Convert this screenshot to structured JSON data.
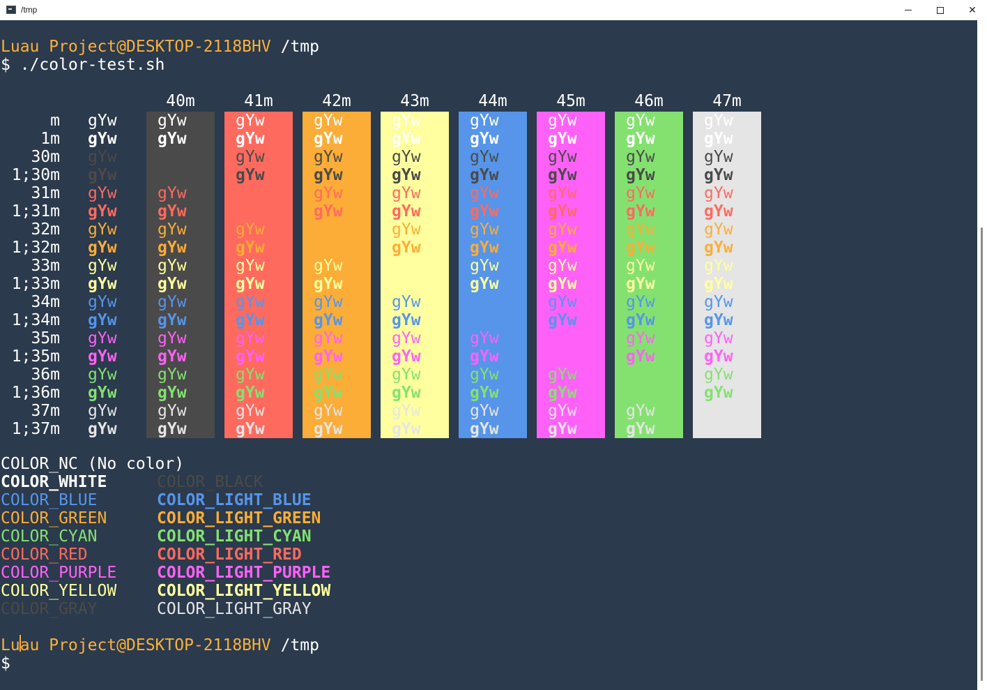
{
  "window": {
    "title": "/tmp",
    "minimize_icon": "minimize-icon",
    "maximize_icon": "maximize-icon",
    "close_icon": "close-icon",
    "close_glyph": "✕"
  },
  "prompt": {
    "user": "Luau Project@DESKTOP-2118BHV",
    "path": "/tmp",
    "command": "$ ./color-test.sh",
    "cursor_line": "$ "
  },
  "colors": {
    "terminal_bg": "#2b3a4c",
    "black": "#4a4a4a",
    "red": "#ff6a5f",
    "orange": "#fbad37",
    "yellow": "#ffff9f",
    "blue": "#5695ea",
    "magenta": "#ff61f8",
    "green": "#84e170",
    "gray": "#e5e5e5",
    "prompt": "#fbb03b"
  },
  "grid": {
    "sample_text": "gYw",
    "headers": [
      "40m",
      "41m",
      "42m",
      "43m",
      "44m",
      "45m",
      "46m",
      "47m"
    ],
    "row_labels": [
      "m",
      "1m",
      "30m",
      "1;30m",
      "31m",
      "1;31m",
      "32m",
      "1;32m",
      "33m",
      "1;33m",
      "34m",
      "1;34m",
      "35m",
      "1;35m",
      "36m",
      "1;36m",
      "37m",
      "1;37m"
    ]
  },
  "color_list": {
    "nc": "COLOR_NC (No color)",
    "left": [
      "COLOR_WHITE",
      "COLOR_BLUE",
      "COLOR_GREEN",
      "COLOR_CYAN",
      "COLOR_RED",
      "COLOR_PURPLE",
      "COLOR_YELLOW",
      "COLOR_GRAY"
    ],
    "right": [
      "COLOR_BLACK",
      "COLOR_LIGHT_BLUE",
      "COLOR_LIGHT_GREEN",
      "COLOR_LIGHT_CYAN",
      "COLOR_LIGHT_RED",
      "COLOR_LIGHT_PURPLE",
      "COLOR_LIGHT_YELLOW",
      "COLOR_LIGHT_GRAY"
    ]
  }
}
